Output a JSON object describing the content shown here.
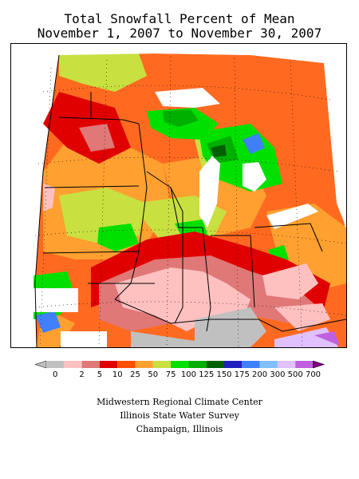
{
  "title": {
    "line1": "Total Snowfall Percent of Mean",
    "line2": "November 1, 2007 to November 30, 2007"
  },
  "legend": {
    "classes": [
      {
        "label": "0",
        "color": "#c0c0c0"
      },
      {
        "label": "2",
        "color": "#ffc0c0"
      },
      {
        "label": "5",
        "color": "#e07878"
      },
      {
        "label": "10",
        "color": "#e00000"
      },
      {
        "label": "25",
        "color": "#ff5000"
      },
      {
        "label": "50",
        "color": "#ffa030"
      },
      {
        "label": "75",
        "color": "#c8e040"
      },
      {
        "label": "100",
        "color": "#00e000"
      },
      {
        "label": "125",
        "color": "#00b000"
      },
      {
        "label": "150",
        "color": "#006000"
      },
      {
        "label": "175",
        "color": "#2020c0"
      },
      {
        "label": "200",
        "color": "#4080ff"
      },
      {
        "label": "300",
        "color": "#80c0ff"
      },
      {
        "label": "500",
        "color": "#e0c0ff"
      },
      {
        "label": "700",
        "color": "#c060e0"
      }
    ],
    "overflow_color": "#800080"
  },
  "credits": {
    "line1": "Midwestern Regional Climate Center",
    "line2": "Illinois State Water Survey",
    "line3": "Champaign, Illinois"
  }
}
